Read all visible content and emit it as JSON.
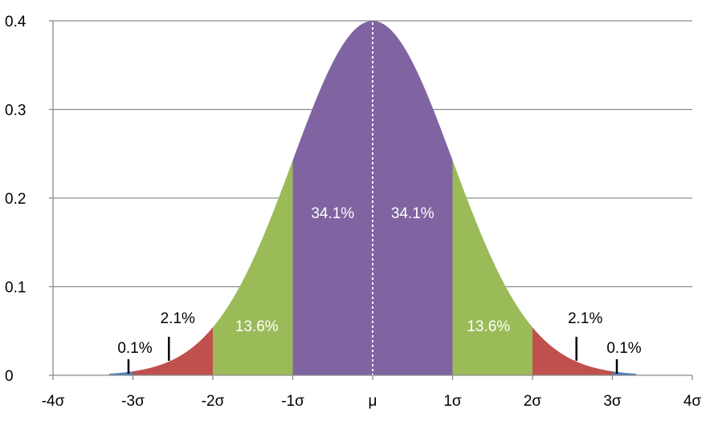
{
  "chart_data": {
    "type": "area",
    "title": "",
    "xlabel": "",
    "ylabel": "",
    "xlim": [
      -4,
      4
    ],
    "ylim": [
      0,
      0.4
    ],
    "grid": true,
    "x_tick_labels": [
      "-4σ",
      "-3σ",
      "-2σ",
      "-1σ",
      "μ",
      "1σ",
      "2σ",
      "3σ",
      "4σ"
    ],
    "y_tick_labels": [
      "0",
      "0.1",
      "0.2",
      "0.3",
      "0.4"
    ],
    "curve": "standard normal density",
    "regions": [
      {
        "from": -3.3,
        "to": -3,
        "label": "0.1%",
        "color": "#4f81bd"
      },
      {
        "from": -3,
        "to": -2,
        "label": "2.1%",
        "color": "#c0504d"
      },
      {
        "from": -2,
        "to": -1,
        "label": "13.6%",
        "color": "#9bbb59"
      },
      {
        "from": -1,
        "to": 0,
        "label": "34.1%",
        "color": "#8064a2"
      },
      {
        "from": 0,
        "to": 1,
        "label": "34.1%",
        "color": "#8064a2"
      },
      {
        "from": 1,
        "to": 2,
        "label": "13.6%",
        "color": "#9bbb59"
      },
      {
        "from": 2,
        "to": 3,
        "label": "2.1%",
        "color": "#c0504d"
      },
      {
        "from": 3,
        "to": 3.3,
        "label": "0.1%",
        "color": "#4f81bd"
      }
    ],
    "mean_line": {
      "x": 0,
      "style": "dotted",
      "color": "#ffffff"
    }
  }
}
